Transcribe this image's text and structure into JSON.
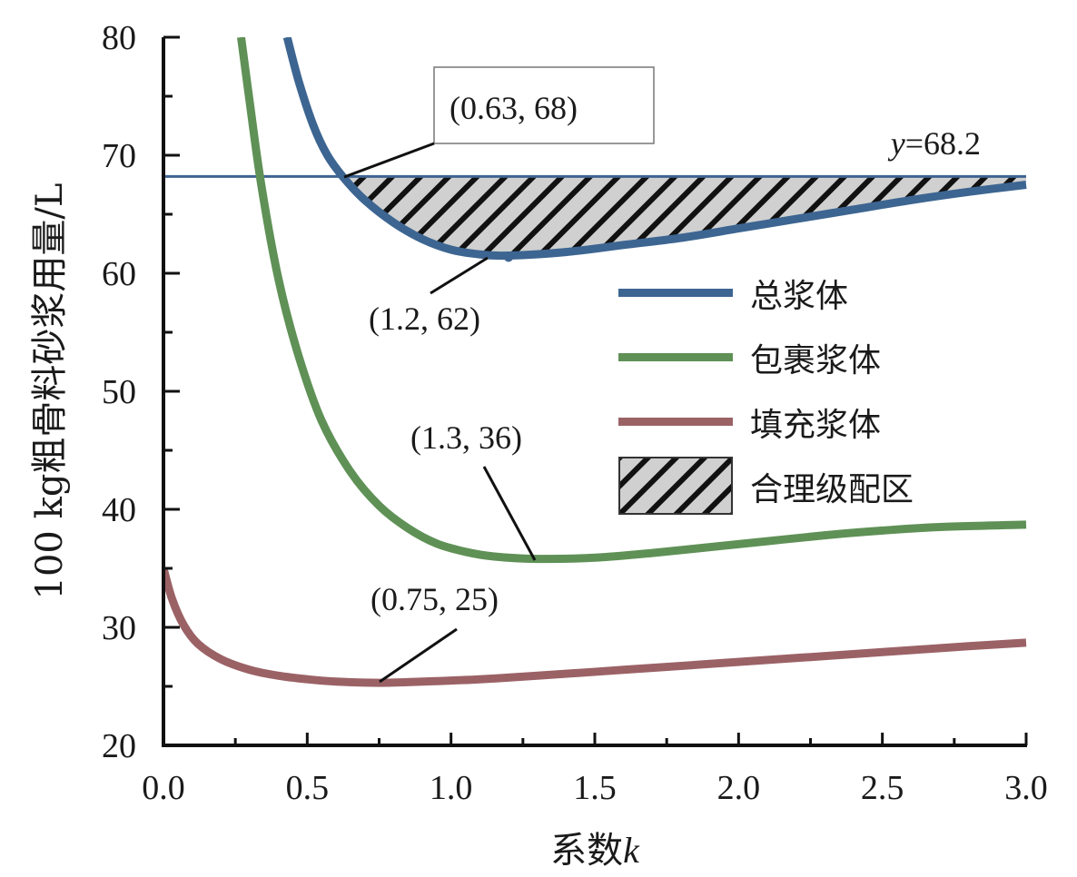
{
  "chart_data": {
    "type": "line",
    "title": "",
    "xlabel": "系数",
    "xlabel_var": "k",
    "ylabel": "100 kg粗骨料砂浆用量/L",
    "xlim": [
      0,
      3.0
    ],
    "ylim": [
      20,
      80
    ],
    "x_ticks": [
      0.0,
      0.5,
      1.0,
      1.5,
      2.0,
      2.5,
      3.0
    ],
    "x_tick_labels": [
      "0.0",
      "0.5",
      "1.0",
      "1.5",
      "2.0",
      "2.5",
      "3.0"
    ],
    "x_minor_step": 0.25,
    "y_ticks": [
      20,
      30,
      40,
      50,
      60,
      70,
      80
    ],
    "y_tick_labels": [
      "20",
      "30",
      "40",
      "50",
      "60",
      "70",
      "80"
    ],
    "y_minor_step": 5,
    "grid": false,
    "legend_position": "right",
    "series": [
      {
        "name": "总浆体",
        "color": "#3d6591",
        "x": [
          0.43,
          0.47,
          0.52,
          0.57,
          0.63,
          0.7,
          0.8,
          0.9,
          1.0,
          1.1,
          1.2,
          1.4,
          1.6,
          1.8,
          2.0,
          2.2,
          2.4,
          2.6,
          2.8,
          3.0
        ],
        "y": [
          80,
          76.3,
          72.6,
          70.0,
          68.0,
          66.2,
          64.3,
          62.9,
          62.0,
          61.6,
          61.5,
          61.8,
          62.4,
          63.0,
          63.8,
          64.6,
          65.4,
          66.2,
          66.9,
          67.5
        ]
      },
      {
        "name": "包裹浆体",
        "color": "#5f9156",
        "x": [
          0.27,
          0.3,
          0.34,
          0.4,
          0.47,
          0.55,
          0.65,
          0.75,
          0.85,
          0.95,
          1.05,
          1.15,
          1.3,
          1.5,
          1.7,
          1.9,
          2.1,
          2.3,
          2.5,
          2.7,
          3.0
        ],
        "y": [
          80,
          74.5,
          67.5,
          59.5,
          53.0,
          47.5,
          43.2,
          40.3,
          38.4,
          37.1,
          36.4,
          36.0,
          35.8,
          35.9,
          36.3,
          36.8,
          37.3,
          37.8,
          38.2,
          38.5,
          38.7
        ]
      },
      {
        "name": "填充浆体",
        "color": "#9b6266",
        "x": [
          0.0,
          0.03,
          0.07,
          0.12,
          0.2,
          0.3,
          0.4,
          0.5,
          0.6,
          0.75,
          0.9,
          1.1,
          1.3,
          1.6,
          1.9,
          2.2,
          2.5,
          2.8,
          3.0
        ],
        "y": [
          35.0,
          32.4,
          30.2,
          28.6,
          27.3,
          26.4,
          25.9,
          25.6,
          25.4,
          25.3,
          25.4,
          25.6,
          25.9,
          26.4,
          26.9,
          27.4,
          27.9,
          28.4,
          28.7
        ]
      }
    ],
    "reference_line": {
      "y": 68.2,
      "label_var": "y",
      "label_value": "=68.2",
      "color": "#3d6591"
    },
    "shaded_region": {
      "name": "合理级配区",
      "between": [
        "总浆体",
        "y=68.2"
      ],
      "x_range": [
        0.63,
        3.0
      ],
      "fill": "#d0d0d0",
      "hatch_color": "#111111"
    },
    "annotations": [
      {
        "text": "(0.63, 68)",
        "x": 0.63,
        "y": 68.2,
        "boxed": true
      },
      {
        "text": "(1.2, 62)",
        "x": 1.2,
        "y": 61.5,
        "boxed": false
      },
      {
        "text": "(1.3, 36)",
        "x": 1.3,
        "y": 35.8,
        "boxed": false
      },
      {
        "text": "(0.75, 25)",
        "x": 0.75,
        "y": 25.3,
        "boxed": false
      }
    ],
    "legend": [
      {
        "label": "总浆体",
        "kind": "line",
        "color": "#3d6591"
      },
      {
        "label": "包裹浆体",
        "kind": "line",
        "color": "#5f9156"
      },
      {
        "label": "填充浆体",
        "kind": "line",
        "color": "#9b6266"
      },
      {
        "label": "合理级配区",
        "kind": "hatch",
        "color": "#d0d0d0"
      }
    ]
  }
}
